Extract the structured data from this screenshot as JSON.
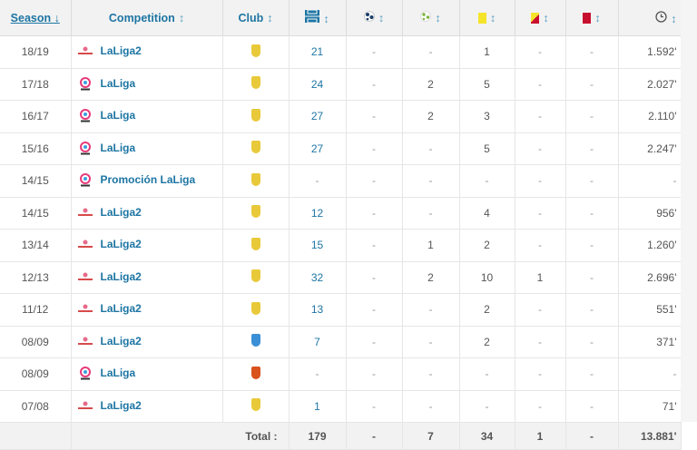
{
  "header": {
    "season": "Season ↓",
    "competition": "Competition",
    "club": "Club",
    "sort_icon": "↕"
  },
  "icons": {
    "apps": "pitch-icon",
    "goals": "ball-icon",
    "assists": "assist-ball-icon",
    "yellow": "yellow-card-icon",
    "second_yellow": "yellow-red-card-icon",
    "red": "red-card-icon",
    "minutes": "clock-icon"
  },
  "colors": {
    "link": "#1d75a3",
    "yellow": "#f5e42a",
    "red": "#c8102e",
    "laspalmas": "#e8c93a",
    "alaves": "#3a8fd6",
    "mallorca": "#d9531e"
  },
  "rows": [
    {
      "season": "18/19",
      "comp": "LaLiga2",
      "logo": "laliga2",
      "club": "laspalmas",
      "apps": "21",
      "goals": "-",
      "assists": "-",
      "yellow": "1",
      "yr": "-",
      "red": "-",
      "min": "1.592'"
    },
    {
      "season": "17/18",
      "comp": "LaLiga",
      "logo": "laliga",
      "club": "laspalmas",
      "apps": "24",
      "goals": "-",
      "assists": "2",
      "yellow": "5",
      "yr": "-",
      "red": "-",
      "min": "2.027'"
    },
    {
      "season": "16/17",
      "comp": "LaLiga",
      "logo": "laliga",
      "club": "laspalmas",
      "apps": "27",
      "goals": "-",
      "assists": "2",
      "yellow": "3",
      "yr": "-",
      "red": "-",
      "min": "2.110'"
    },
    {
      "season": "15/16",
      "comp": "LaLiga",
      "logo": "laliga",
      "club": "laspalmas",
      "apps": "27",
      "goals": "-",
      "assists": "-",
      "yellow": "5",
      "yr": "-",
      "red": "-",
      "min": "2.247'"
    },
    {
      "season": "14/15",
      "comp": "Promoción LaLiga",
      "logo": "laliga",
      "club": "laspalmas",
      "apps": "-",
      "goals": "-",
      "assists": "-",
      "yellow": "-",
      "yr": "-",
      "red": "-",
      "min": "-"
    },
    {
      "season": "14/15",
      "comp": "LaLiga2",
      "logo": "laliga2",
      "club": "laspalmas",
      "apps": "12",
      "goals": "-",
      "assists": "-",
      "yellow": "4",
      "yr": "-",
      "red": "-",
      "min": "956'"
    },
    {
      "season": "13/14",
      "comp": "LaLiga2",
      "logo": "laliga2",
      "club": "laspalmas",
      "apps": "15",
      "goals": "-",
      "assists": "1",
      "yellow": "2",
      "yr": "-",
      "red": "-",
      "min": "1.260'"
    },
    {
      "season": "12/13",
      "comp": "LaLiga2",
      "logo": "laliga2",
      "club": "laspalmas",
      "apps": "32",
      "goals": "-",
      "assists": "2",
      "yellow": "10",
      "yr": "1",
      "red": "-",
      "min": "2.696'"
    },
    {
      "season": "11/12",
      "comp": "LaLiga2",
      "logo": "laliga2",
      "club": "laspalmas",
      "apps": "13",
      "goals": "-",
      "assists": "-",
      "yellow": "2",
      "yr": "-",
      "red": "-",
      "min": "551'"
    },
    {
      "season": "08/09",
      "comp": "LaLiga2",
      "logo": "laliga2",
      "club": "alaves",
      "apps": "7",
      "goals": "-",
      "assists": "-",
      "yellow": "2",
      "yr": "-",
      "red": "-",
      "min": "371'"
    },
    {
      "season": "08/09",
      "comp": "LaLiga",
      "logo": "laliga",
      "club": "mallorca",
      "apps": "-",
      "goals": "-",
      "assists": "-",
      "yellow": "-",
      "yr": "-",
      "red": "-",
      "min": "-"
    },
    {
      "season": "07/08",
      "comp": "LaLiga2",
      "logo": "laliga2",
      "club": "laspalmas",
      "apps": "1",
      "goals": "-",
      "assists": "-",
      "yellow": "-",
      "yr": "-",
      "red": "-",
      "min": "71'"
    }
  ],
  "total": {
    "label": "Total :",
    "apps": "179",
    "goals": "-",
    "assists": "7",
    "yellow": "34",
    "yr": "1",
    "red": "-",
    "min": "13.881'"
  }
}
